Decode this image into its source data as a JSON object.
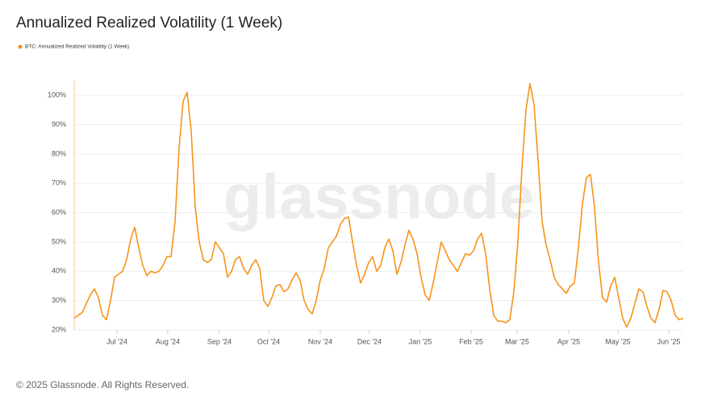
{
  "chart_data": {
    "type": "line",
    "title": "Annualized Realized Volatility (1 Week)",
    "watermark": "glassnode",
    "footer": "© 2025 Glassnode. All Rights Reserved.",
    "xlim": [
      0,
      151
    ],
    "xticks": [
      {
        "value": 10.6,
        "label": "Jul '24"
      },
      {
        "value": 23.2,
        "label": "Aug '24"
      },
      {
        "value": 36,
        "label": "Sep '24"
      },
      {
        "value": 48.2,
        "label": "Oct '24"
      },
      {
        "value": 61,
        "label": "Nov '24"
      },
      {
        "value": 73.2,
        "label": "Dec '24"
      },
      {
        "value": 85.8,
        "label": "Jan '25"
      },
      {
        "value": 98.4,
        "label": "Feb '25"
      },
      {
        "value": 109.8,
        "label": "Mar '25"
      },
      {
        "value": 122.6,
        "label": "Apr '25"
      },
      {
        "value": 134.8,
        "label": "May '25"
      },
      {
        "value": 147.4,
        "label": "Jun '25"
      }
    ],
    "ylim": [
      20,
      105
    ],
    "yticks": [
      {
        "value": 20,
        "label": "20%"
      },
      {
        "value": 30,
        "label": "30%"
      },
      {
        "value": 40,
        "label": "40%"
      },
      {
        "value": 50,
        "label": "50%"
      },
      {
        "value": 60,
        "label": "60%"
      },
      {
        "value": 70,
        "label": "70%"
      },
      {
        "value": 80,
        "label": "80%"
      },
      {
        "value": 90,
        "label": "90%"
      },
      {
        "value": 100,
        "label": "100%"
      }
    ],
    "grid": true,
    "legend": "top-left",
    "series": [
      {
        "name": "BTC: Annualized Realized Volatility (1 Week)",
        "color": "#f7931a",
        "values": [
          24,
          25,
          26,
          29,
          32,
          34,
          31,
          25,
          23.5,
          30,
          38,
          39,
          40,
          44,
          51,
          55,
          48,
          42,
          38.5,
          40,
          39.5,
          40,
          42,
          45,
          45,
          57,
          82,
          98,
          101,
          88,
          62,
          50,
          44,
          43,
          44,
          50,
          48,
          46,
          38,
          40,
          44,
          45,
          41,
          39,
          42,
          44,
          41,
          30,
          28,
          31,
          35,
          35.5,
          33,
          34,
          37,
          39.5,
          37,
          30,
          27,
          25.5,
          30,
          37,
          41,
          48,
          50,
          52,
          56,
          58,
          58.5,
          50,
          42,
          36,
          39,
          43,
          45,
          40,
          42,
          48,
          51,
          47,
          39,
          43,
          49,
          54,
          51,
          46,
          38,
          32,
          30,
          36,
          43,
          50,
          47,
          44,
          42,
          40,
          43,
          46,
          45.5,
          47,
          51,
          53,
          46,
          34,
          25,
          23,
          23,
          22.5,
          23.5,
          33,
          50,
          75,
          95,
          104,
          97,
          78,
          57,
          49,
          44,
          38,
          35.5,
          34,
          32.5,
          35,
          36,
          48,
          63,
          72,
          73,
          62,
          43,
          31,
          29.5,
          35,
          38,
          31,
          24,
          21,
          24,
          29,
          34,
          33,
          28,
          24,
          22.5,
          27,
          33.5,
          33,
          30,
          25,
          23.5,
          24
        ]
      }
    ]
  }
}
